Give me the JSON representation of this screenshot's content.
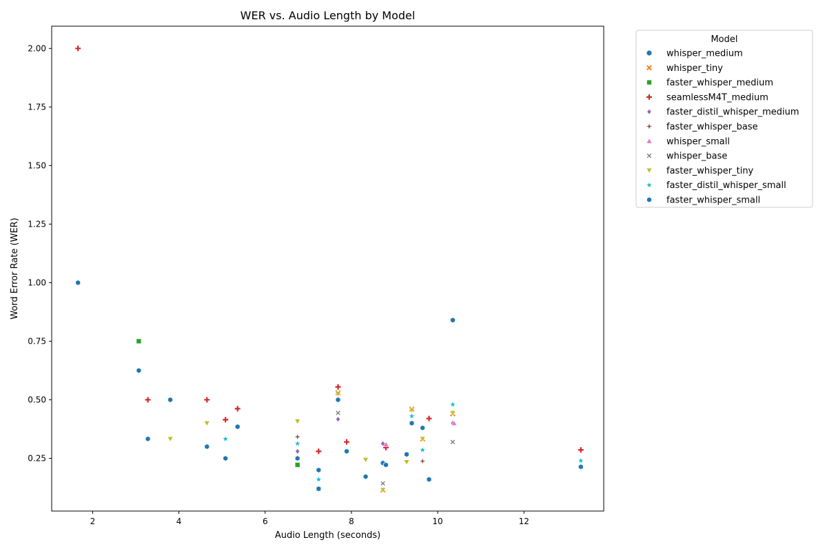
{
  "chart_data": {
    "type": "scatter",
    "title": "WER vs. Audio Length by Model",
    "xlabel": "Audio Length (seconds)",
    "ylabel": "Word Error Rate (WER)",
    "xlim": [
      1.05,
      13.85
    ],
    "ylim": [
      0.025,
      2.095
    ],
    "xticks": [
      2,
      4,
      6,
      8,
      10,
      12
    ],
    "yticks": [
      0.25,
      0.5,
      0.75,
      1.0,
      1.25,
      1.5,
      1.75,
      2.0
    ],
    "ytick_labels": [
      "0.25",
      "0.50",
      "0.75",
      "1.00",
      "1.25",
      "1.50",
      "1.75",
      "2.00"
    ],
    "grid": false,
    "legend": {
      "title": "Model",
      "placement": "outside-top-right"
    },
    "series": [
      {
        "name": "whisper_medium",
        "color": "#1f77b4",
        "marker": "circle",
        "x": [
          1.66,
          3.07,
          3.28,
          3.8,
          4.65,
          5.08,
          5.36,
          6.75,
          7.24,
          7.69,
          7.89,
          8.33,
          8.73,
          8.8,
          9.28,
          9.4,
          9.65,
          9.8,
          10.35,
          13.32
        ],
        "y": [
          1.0,
          0.625,
          0.333,
          0.5,
          0.3,
          0.25,
          0.385,
          0.25,
          0.2,
          0.5,
          0.28,
          0.172,
          0.23,
          0.222,
          0.267,
          0.4,
          0.38,
          0.16,
          0.84,
          0.214
        ]
      },
      {
        "name": "whisper_tiny",
        "color": "#ff7f0e",
        "marker": "x",
        "x": [
          7.69,
          8.73,
          9.4,
          9.65,
          10.35
        ],
        "y": [
          0.53,
          0.115,
          0.46,
          0.333,
          0.44
        ]
      },
      {
        "name": "faster_whisper_medium",
        "color": "#2ca02c",
        "marker": "square",
        "x": [
          3.07,
          6.75,
          7.24
        ],
        "y": [
          0.75,
          0.222,
          0.12
        ]
      },
      {
        "name": "seamlessM4T_medium",
        "color": "#d62728",
        "marker": "plus",
        "x": [
          1.66,
          3.28,
          4.65,
          5.08,
          5.36,
          7.24,
          7.69,
          7.89,
          8.8,
          9.8,
          13.32
        ],
        "y": [
          2.0,
          0.5,
          0.5,
          0.415,
          0.462,
          0.28,
          0.555,
          0.32,
          0.296,
          0.42,
          0.286
        ]
      },
      {
        "name": "faster_distil_whisper_medium",
        "color": "#9467bd",
        "marker": "diamond",
        "x": [
          6.75,
          7.69,
          8.73,
          10.35
        ],
        "y": [
          0.28,
          0.417,
          0.313,
          0.4
        ]
      },
      {
        "name": "faster_whisper_base",
        "color": "#8c564b",
        "marker": "star4",
        "x": [
          6.75,
          9.65
        ],
        "y": [
          0.342,
          0.238
        ]
      },
      {
        "name": "whisper_small",
        "color": "#e377c2",
        "marker": "triangle-up",
        "x": [
          8.8,
          10.38
        ],
        "y": [
          0.31,
          0.4
        ]
      },
      {
        "name": "whisper_base",
        "color": "#7f7f7f",
        "marker": "x-small",
        "x": [
          7.69,
          8.73,
          10.35
        ],
        "y": [
          0.444,
          0.143,
          0.32
        ]
      },
      {
        "name": "faster_whisper_tiny",
        "color": "#bcbd22",
        "marker": "triangle-down",
        "x": [
          3.8,
          4.65,
          6.75,
          8.33,
          9.28,
          9.4,
          9.65,
          10.35,
          7.69,
          8.73
        ],
        "y": [
          0.333,
          0.4,
          0.408,
          0.244,
          0.234,
          0.456,
          0.333,
          0.444,
          0.525,
          0.115
        ]
      },
      {
        "name": "faster_distil_whisper_small",
        "color": "#17becf",
        "marker": "star",
        "x": [
          5.08,
          6.75,
          7.24,
          9.4,
          9.65,
          10.35,
          13.32
        ],
        "y": [
          0.333,
          0.313,
          0.16,
          0.43,
          0.286,
          0.48,
          0.24
        ]
      },
      {
        "name": "faster_whisper_small",
        "color": "#1f77b4",
        "marker": "hexagon",
        "x": [
          1.66,
          3.07,
          3.28,
          3.8,
          4.65,
          5.08,
          5.36,
          6.75,
          7.24,
          7.24,
          7.69,
          7.89,
          8.33,
          8.73,
          8.8,
          9.28,
          9.4,
          9.65,
          9.8,
          10.35,
          13.32
        ],
        "y": [
          1.0,
          0.625,
          0.333,
          0.5,
          0.3,
          0.25,
          0.385,
          0.25,
          0.2,
          0.12,
          0.5,
          0.28,
          0.172,
          0.23,
          0.222,
          0.267,
          0.4,
          0.38,
          0.16,
          0.84,
          0.214
        ]
      }
    ]
  }
}
